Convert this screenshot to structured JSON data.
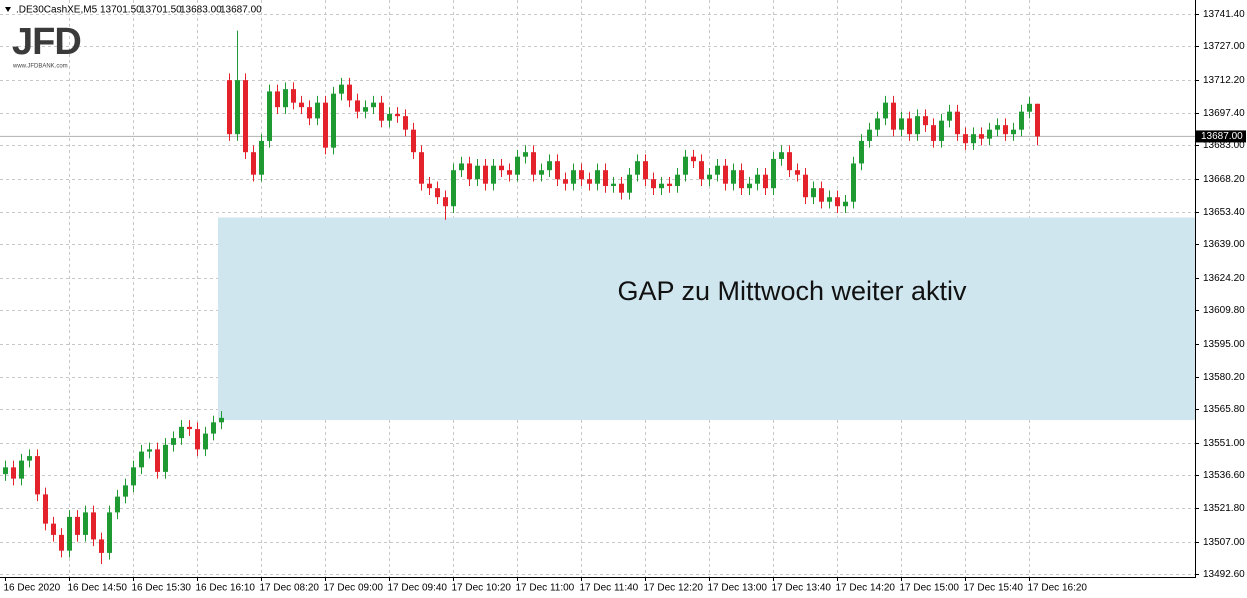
{
  "chart_data": {
    "type": "candlestick",
    "symbol": ".DE30CashXE,M5",
    "header_values": [
      {
        "value": 13701.5,
        "label": "13701.50"
      },
      {
        "value": 13701.5,
        "label": "13701.50"
      },
      {
        "value": 13683,
        "label": "13683.00"
      },
      {
        "value": 13687,
        "label": "13687.00"
      }
    ],
    "logo": "JFD",
    "logo_url": "www.JFDBANK.com",
    "annotation": {
      "text": "GAP zu Mittwoch weiter aktiv",
      "low": 13561,
      "high": 13651,
      "color": "#cfe6ef"
    },
    "current_price": {
      "value": 13687,
      "label": "13687.00"
    },
    "up_color": "#1f9a33",
    "down_color": "#e3222b",
    "grid": true,
    "ylim": [
      13491.3,
      13747.6
    ],
    "yticks": [
      {
        "value": 13741.4,
        "label": "13741.40"
      },
      {
        "value": 13727,
        "label": "13727.00"
      },
      {
        "value": 13712.2,
        "label": "13712.20"
      },
      {
        "value": 13697.4,
        "label": "13697.40"
      },
      {
        "value": 13683,
        "label": "13683.00"
      },
      {
        "value": 13668.2,
        "label": "13668.20"
      },
      {
        "value": 13653.4,
        "label": "13653.40"
      },
      {
        "value": 13639,
        "label": "13639.00"
      },
      {
        "value": 13624.2,
        "label": "13624.20"
      },
      {
        "value": 13609.8,
        "label": "13609.80"
      },
      {
        "value": 13595,
        "label": "13595.00"
      },
      {
        "value": 13580.2,
        "label": "13580.20"
      },
      {
        "value": 13565.8,
        "label": "13565.80"
      },
      {
        "value": 13551,
        "label": "13551.00"
      },
      {
        "value": 13536.6,
        "label": "13536.60"
      },
      {
        "value": 13521.8,
        "label": "13521.80"
      },
      {
        "value": 13507,
        "label": "13507.00"
      },
      {
        "value": 13492.6,
        "label": "13492.60"
      }
    ],
    "categories": [
      "16 Dec 2020",
      null,
      null,
      null,
      null,
      null,
      null,
      null,
      "16 Dec 14:50",
      null,
      null,
      null,
      null,
      null,
      null,
      null,
      "16 Dec 15:30",
      null,
      null,
      null,
      null,
      null,
      null,
      null,
      "16 Dec 16:10",
      null,
      null,
      null,
      null,
      null,
      null,
      null,
      "17 Dec 08:20",
      null,
      null,
      null,
      null,
      null,
      null,
      null,
      "17 Dec 09:00",
      null,
      null,
      null,
      null,
      null,
      null,
      null,
      "17 Dec 09:40",
      null,
      null,
      null,
      null,
      null,
      null,
      null,
      "17 Dec 10:20",
      null,
      null,
      null,
      null,
      null,
      null,
      null,
      "17 Dec 11:00",
      null,
      null,
      null,
      null,
      null,
      null,
      null,
      "17 Dec 11:40",
      null,
      null,
      null,
      null,
      null,
      null,
      null,
      "17 Dec 12:20",
      null,
      null,
      null,
      null,
      null,
      null,
      null,
      "17 Dec 13:00",
      null,
      null,
      null,
      null,
      null,
      null,
      null,
      "17 Dec 13:40",
      null,
      null,
      null,
      null,
      null,
      null,
      null,
      "17 Dec 14:20",
      null,
      null,
      null,
      null,
      null,
      null,
      null,
      "17 Dec 15:00",
      null,
      null,
      null,
      null,
      null,
      null,
      null,
      "17 Dec 15:40",
      null,
      null,
      null,
      null,
      null,
      null,
      null,
      "17 Dec 16:20",
      null
    ],
    "open": [
      13537,
      13540,
      13535,
      13543,
      13545,
      13528,
      13515,
      13510,
      13503,
      13518,
      13510,
      13520,
      13508,
      13502,
      13520,
      13527,
      13532,
      13540,
      13547,
      13548,
      13538,
      13550,
      13553,
      13558,
      13557,
      13548,
      13555,
      13560,
      13712,
      13688,
      13712,
      13680,
      13670,
      13685,
      13707,
      13700,
      13708,
      13702,
      13700,
      13695,
      13702,
      13682,
      13706,
      13710,
      13703,
      13698,
      13700,
      13702,
      13694,
      13697,
      13696,
      13690,
      13680,
      13666,
      13664,
      13660,
      13656,
      13672,
      13675,
      13668,
      13674,
      13666,
      13674,
      13672,
      13670,
      13678,
      13680,
      13670,
      13672,
      13676,
      13668,
      13666,
      13672,
      13668,
      13666,
      13672,
      13665,
      13666,
      13662,
      13670,
      13676,
      13668,
      13664,
      13666,
      13665,
      13670,
      13678,
      13676,
      13668,
      13670,
      13674,
      13666,
      13672,
      13664,
      13666,
      13670,
      13664,
      13677,
      13680,
      13672,
      13670,
      13660,
      13664,
      13658,
      13660,
      13656,
      13658,
      13675,
      13685,
      13690,
      13695,
      13702,
      13690,
      13695,
      13688,
      13696,
      13692,
      13685,
      13694,
      13698,
      13688,
      13684,
      13688,
      13686,
      13690,
      13692,
      13688,
      13690,
      13698,
      13701.5
    ],
    "high": [
      13543,
      13543,
      13546,
      13548,
      13548,
      13531,
      13518,
      13513,
      13521,
      13521,
      13523,
      13523,
      13511,
      13523,
      13530,
      13535,
      13543,
      13550,
      13551,
      13551,
      13553,
      13556,
      13561,
      13561,
      13560,
      13558,
      13563,
      13565,
      13715,
      13734,
      13715,
      13683,
      13688,
      13710,
      13710,
      13711,
      13711,
      13705,
      13703,
      13705,
      13705,
      13709,
      13713,
      13713,
      13706,
      13703,
      13705,
      13705,
      13700,
      13700,
      13699,
      13693,
      13683,
      13669,
      13667,
      13663,
      13675,
      13678,
      13678,
      13677,
      13677,
      13677,
      13677,
      13675,
      13681,
      13683,
      13683,
      13675,
      13679,
      13679,
      13671,
      13675,
      13675,
      13671,
      13675,
      13675,
      13669,
      13669,
      13673,
      13679,
      13679,
      13671,
      13669,
      13669,
      13673,
      13681,
      13681,
      13679,
      13673,
      13677,
      13677,
      13675,
      13675,
      13669,
      13673,
      13673,
      13680,
      13683,
      13683,
      13675,
      13673,
      13667,
      13667,
      13663,
      13663,
      13661,
      13678,
      13688,
      13693,
      13698,
      13705,
      13705,
      13698,
      13698,
      13699,
      13699,
      13695,
      13697,
      13701,
      13701,
      13691,
      13691,
      13691,
      13693,
      13695,
      13695,
      13693,
      13701,
      13704.5,
      13701.5
    ],
    "low": [
      13534,
      13532,
      13532,
      13540,
      13525,
      13512,
      13507,
      13500,
      13500,
      13507,
      13507,
      13505,
      13497,
      13499,
      13517,
      13524,
      13529,
      13537,
      13544,
      13535,
      13535,
      13547,
      13550,
      13554,
      13545,
      13545,
      13552,
      13557,
      13685,
      13685,
      13677,
      13667,
      13667,
      13682,
      13697,
      13697,
      13699,
      13697,
      13692,
      13692,
      13679,
      13679,
      13703,
      13700,
      13695,
      13695,
      13697,
      13691,
      13691,
      13693,
      13687,
      13677,
      13663,
      13661,
      13657,
      13650,
      13653,
      13669,
      13665,
      13665,
      13663,
      13663,
      13669,
      13667,
      13667,
      13675,
      13667,
      13667,
      13669,
      13665,
      13663,
      13663,
      13665,
      13663,
      13663,
      13662,
      13662,
      13659,
      13659,
      13667,
      13665,
      13661,
      13661,
      13662,
      13662,
      13667,
      13673,
      13665,
      13665,
      13667,
      13663,
      13663,
      13661,
      13661,
      13663,
      13661,
      13661,
      13674,
      13669,
      13667,
      13657,
      13657,
      13655,
      13655,
      13653,
      13653,
      13655,
      13672,
      13682,
      13687,
      13692,
      13687,
      13687,
      13685,
      13685,
      13689,
      13682,
      13682,
      13691,
      13685,
      13681,
      13681,
      13683,
      13683,
      13687,
      13685,
      13685,
      13687,
      13695,
      13683
    ],
    "close": [
      13540,
      13535,
      13543,
      13545,
      13528,
      13515,
      13510,
      13503,
      13518,
      13510,
      13520,
      13508,
      13502,
      13520,
      13527,
      13532,
      13540,
      13547,
      13548,
      13538,
      13550,
      13553,
      13558,
      13557,
      13548,
      13555,
      13560,
      13562,
      13688,
      13712,
      13680,
      13670,
      13685,
      13707,
      13700,
      13708,
      13702,
      13700,
      13695,
      13702,
      13682,
      13706,
      13710,
      13703,
      13698,
      13700,
      13702,
      13694,
      13697,
      13696,
      13690,
      13680,
      13666,
      13664,
      13660,
      13656,
      13672,
      13675,
      13668,
      13674,
      13666,
      13674,
      13672,
      13670,
      13678,
      13680,
      13670,
      13672,
      13676,
      13668,
      13666,
      13672,
      13668,
      13666,
      13672,
      13665,
      13666,
      13662,
      13670,
      13676,
      13668,
      13664,
      13666,
      13665,
      13670,
      13678,
      13676,
      13668,
      13670,
      13674,
      13666,
      13672,
      13664,
      13666,
      13670,
      13664,
      13677,
      13680,
      13672,
      13670,
      13660,
      13664,
      13658,
      13660,
      13656,
      13658,
      13675,
      13685,
      13690,
      13695,
      13702,
      13690,
      13695,
      13688,
      13696,
      13692,
      13685,
      13694,
      13698,
      13688,
      13684,
      13688,
      13686,
      13690,
      13692,
      13688,
      13690,
      13698,
      13701.5,
      13687
    ]
  }
}
